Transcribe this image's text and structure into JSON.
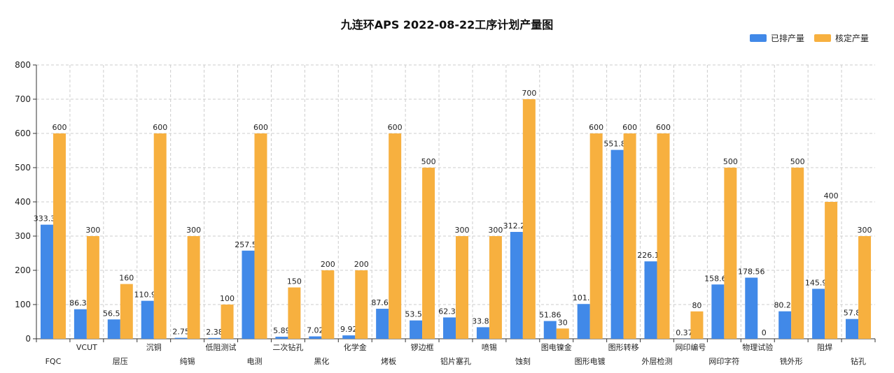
{
  "colors": {
    "scheduled": "#4189e8",
    "rated": "#f7b03f",
    "grid": "#cccccc",
    "axis": "#333333"
  },
  "chart_data": {
    "type": "bar",
    "title": "九连环APS 2022-08-22工序计划产量图",
    "legend_position": "top-right",
    "grid": true,
    "ylim": [
      0,
      800
    ],
    "yticks": [
      0,
      100,
      200,
      300,
      400,
      500,
      600,
      700,
      800
    ],
    "categories": [
      "FQC",
      "VCUT",
      "层压",
      "沉铜",
      "纯锡",
      "低阻测试",
      "电测",
      "二次钻孔",
      "黑化",
      "化学金",
      "烤板",
      "锣边框",
      "铝片塞孔",
      "喷锡",
      "蚀刻",
      "图电镍金",
      "图形电镀",
      "图形转移",
      "外层检测",
      "网印编号",
      "网印字符",
      "物理试验",
      "铣外形",
      "阻焊",
      "钻孔"
    ],
    "series": [
      {
        "name": "已排产量",
        "values": [
          333.36,
          86.31,
          56.58,
          110.94,
          2.75,
          2.38,
          257.53,
          5.89,
          7.02,
          9.92,
          87.65,
          53.58,
          62.35,
          33.81,
          312.21,
          51.86,
          101.6,
          551.82,
          226.16,
          0.37,
          158.66,
          178.56,
          80.24,
          145.99,
          57.8
        ]
      },
      {
        "name": "核定产量",
        "values": [
          600,
          300,
          160,
          600,
          300,
          100,
          600,
          150,
          200,
          200,
          600,
          500,
          300,
          300,
          700,
          30,
          600,
          600,
          600,
          80,
          500,
          0,
          500,
          400,
          300
        ]
      }
    ]
  }
}
